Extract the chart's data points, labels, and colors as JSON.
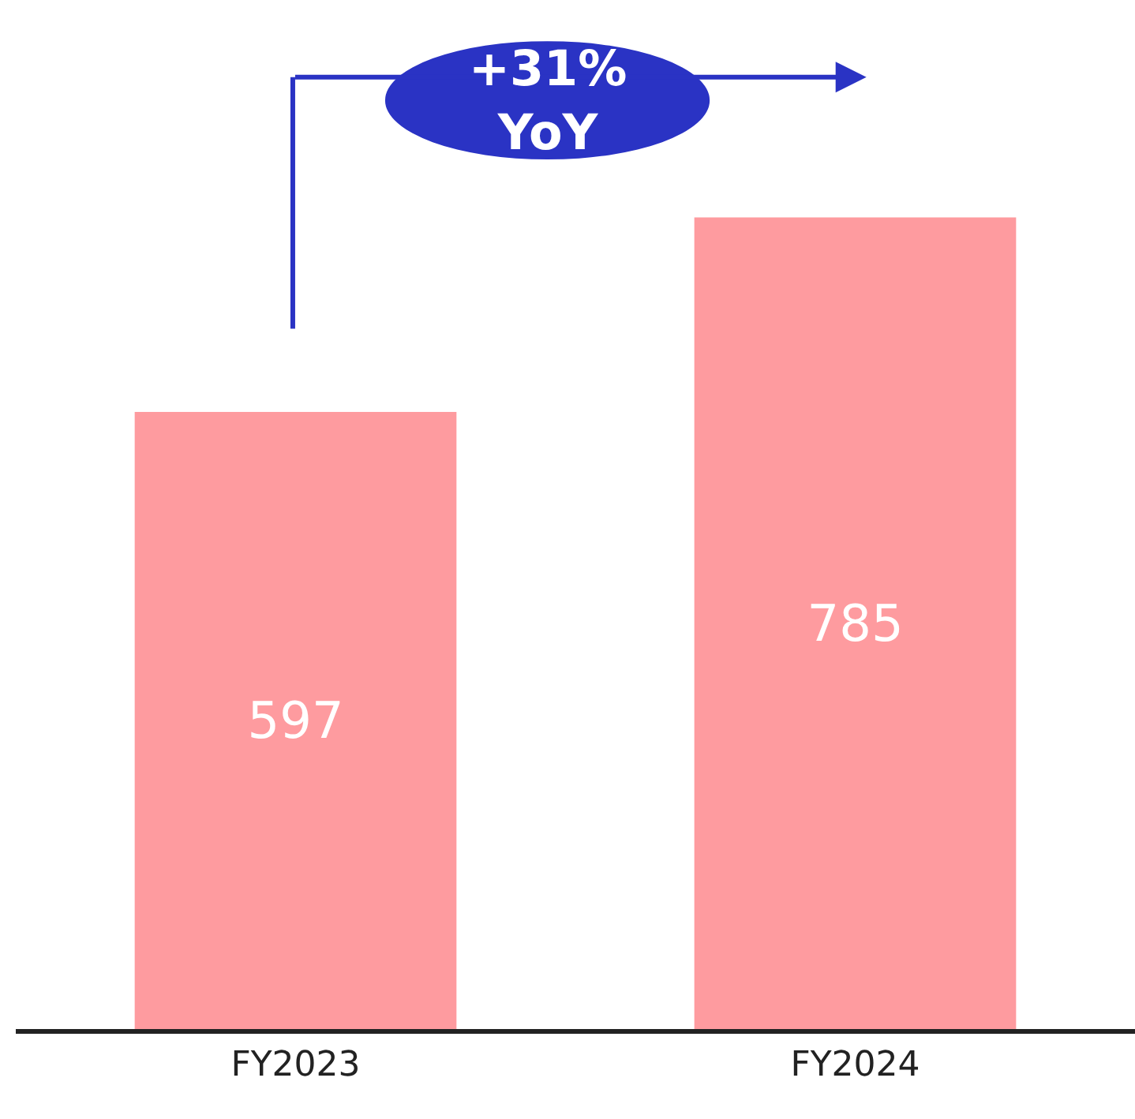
{
  "chart_data": {
    "type": "bar",
    "categories": [
      "FY2023",
      "FY2024"
    ],
    "values": [
      597,
      785
    ],
    "color": "#fe9b9f",
    "data_labels": true,
    "annotations": [
      "+31%\nYoY"
    ]
  }
}
